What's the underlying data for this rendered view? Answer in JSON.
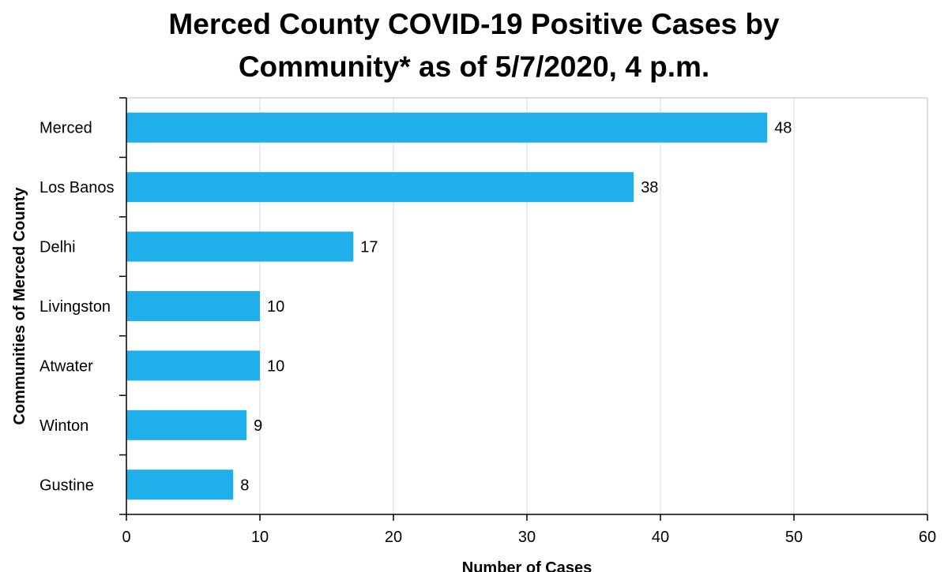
{
  "chart_data": {
    "type": "bar",
    "orientation": "horizontal",
    "title_lines": [
      "Merced County COVID-19 Positive Cases by",
      "Community* as of 5/7/2020, 4 p.m."
    ],
    "categories": [
      "Merced",
      "Los Banos",
      "Delhi",
      "Livingston",
      "Atwater",
      "Winton",
      "Gustine"
    ],
    "values": [
      48,
      38,
      17,
      10,
      10,
      9,
      8
    ],
    "xlabel": "Number of Cases",
    "ylabel": "Communities of Merced County",
    "xlim": [
      0,
      60
    ],
    "xticks": [
      0,
      10,
      20,
      30,
      40,
      50,
      60
    ],
    "grid": "vertical",
    "data_labels": true,
    "bar_color": "#1FB0EC"
  }
}
